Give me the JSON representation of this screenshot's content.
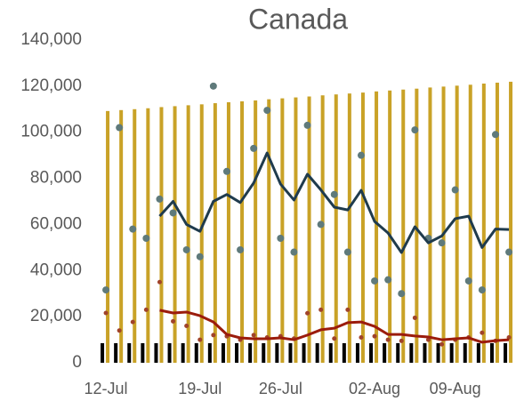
{
  "chart_data": {
    "type": "combo",
    "title": "Canada",
    "categories": [
      "12-Jul",
      null,
      null,
      null,
      null,
      null,
      null,
      "19-Jul",
      null,
      null,
      null,
      null,
      null,
      "26-Jul",
      null,
      null,
      null,
      null,
      null,
      null,
      "02-Aug",
      null,
      null,
      null,
      null,
      null,
      "09-Aug",
      null,
      null,
      null,
      null
    ],
    "ylim": [
      0,
      140000
    ],
    "yticks": [
      0,
      {
        "value": 20000,
        "label": "20,000"
      },
      {
        "value": 40000,
        "label": "40,000"
      },
      {
        "value": 60000,
        "label": "60,000"
      },
      {
        "value": 80000,
        "label": "80,000"
      },
      {
        "value": 100000,
        "label": "100,000"
      },
      {
        "value": 120000,
        "label": "120,000"
      },
      {
        "value": 140000,
        "label": "140,000"
      }
    ],
    "series": [
      {
        "type": "bar",
        "color": "#c9a227",
        "values": [
          109200,
          109600,
          110000,
          110400,
          110900,
          111300,
          111700,
          112100,
          112600,
          113000,
          113400,
          113800,
          114300,
          114700,
          115100,
          115500,
          116000,
          116400,
          116800,
          117200,
          117700,
          118100,
          118500,
          118900,
          119400,
          119800,
          120200,
          120600,
          121100,
          121500,
          121900
        ]
      },
      {
        "type": "bar",
        "color": "#000000",
        "values": [
          8500,
          8500,
          8500,
          8500,
          8500,
          8500,
          8500,
          8500,
          8500,
          8500,
          8500,
          8500,
          8500,
          8500,
          8500,
          8500,
          8500,
          8500,
          8500,
          8500,
          8500,
          8500,
          8500,
          8500,
          8500,
          8500,
          8500,
          8500,
          8500,
          8500,
          8500
        ]
      },
      {
        "type": "scatter",
        "color": "#5f7a7b",
        "values": [
          31600,
          102000,
          58000,
          54000,
          71000,
          65000,
          49000,
          46000,
          120000,
          83000,
          49000,
          93000,
          109500,
          54000,
          48000,
          103000,
          60000,
          73000,
          48000,
          90000,
          35500,
          36000,
          30000,
          101000,
          54000,
          52000,
          75000,
          35500,
          31600,
          99000,
          48000
        ]
      },
      {
        "type": "line",
        "color": "#1f3b4d",
        "values": [
          null,
          null,
          null,
          null,
          63600,
          70000,
          60000,
          57000,
          70000,
          73000,
          69500,
          78000,
          91000,
          77500,
          70600,
          81800,
          75000,
          67500,
          66300,
          74800,
          61300,
          56300,
          47800,
          59000,
          52000,
          55000,
          62500,
          63600,
          50000,
          58000,
          57800
        ]
      },
      {
        "type": "scatter",
        "color": "#a0432a",
        "values": [
          21600,
          14000,
          17700,
          23000,
          35000,
          18000,
          16000,
          10000,
          12000,
          11500,
          10000,
          12000,
          11000,
          11500,
          10500,
          21500,
          23000,
          10500,
          23000,
          11000,
          11500,
          10000,
          9500,
          19500,
          10000,
          8000,
          10000,
          11000,
          13000,
          9500,
          11000
        ]
      },
      {
        "type": "line",
        "color": "#9b1c0c",
        "values": [
          null,
          null,
          null,
          null,
          22800,
          21600,
          22000,
          20400,
          17700,
          12300,
          10800,
          10400,
          10400,
          10800,
          10000,
          12000,
          14300,
          15000,
          17400,
          17700,
          15800,
          12300,
          12300,
          11600,
          11200,
          10000,
          10400,
          10800,
          8900,
          9600,
          10000
        ]
      }
    ]
  }
}
